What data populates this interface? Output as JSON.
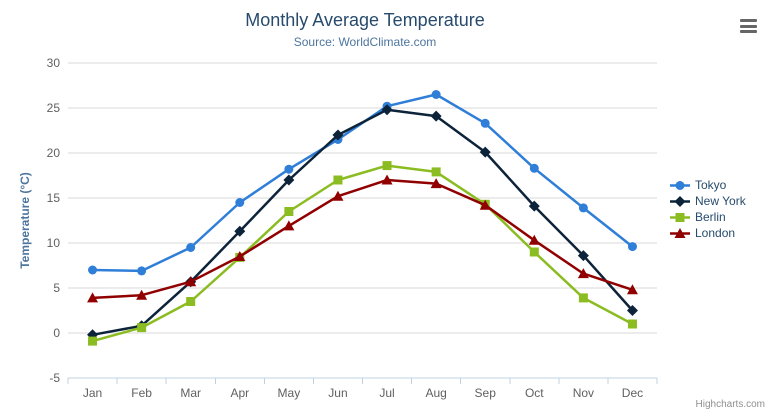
{
  "header": {
    "title": "Monthly Average Temperature",
    "subtitle": "Source: WorldClimate.com"
  },
  "credits": {
    "label": "Highcharts.com"
  },
  "context_menu": {
    "icon": "hamburger-icon"
  },
  "colors": {
    "title": "#274b6d",
    "subtitle": "#4d759e",
    "axis_title": "#4d759e",
    "axis_labels": "#606060",
    "gridline": "#d8d8d8",
    "axis_line": "#c0d0e0",
    "legend_text": "#274b6d",
    "credits": "#909090",
    "menu_icon": "#666666",
    "background": "#ffffff"
  },
  "chart_data": {
    "type": "line",
    "title": "Monthly Average Temperature",
    "subtitle": "Source: WorldClimate.com",
    "xlabel": "",
    "ylabel": "Temperature (°C)",
    "categories": [
      "Jan",
      "Feb",
      "Mar",
      "Apr",
      "May",
      "Jun",
      "Jul",
      "Aug",
      "Sep",
      "Oct",
      "Nov",
      "Dec"
    ],
    "ylim": [
      -5,
      30
    ],
    "ytick_interval": 5,
    "ytick_labels": [
      "-5",
      "0",
      "5",
      "10",
      "15",
      "20",
      "25",
      "30"
    ],
    "grid": true,
    "legend_position": "right",
    "series": [
      {
        "name": "Tokyo",
        "color": "#2f7ed8",
        "marker": "circle",
        "values": [
          7.0,
          6.9,
          9.5,
          14.5,
          18.2,
          21.5,
          25.2,
          26.5,
          23.3,
          18.3,
          13.9,
          9.6
        ]
      },
      {
        "name": "New York",
        "color": "#0d233a",
        "marker": "diamond",
        "values": [
          -0.2,
          0.8,
          5.7,
          11.3,
          17.0,
          22.0,
          24.8,
          24.1,
          20.1,
          14.1,
          8.6,
          2.5
        ]
      },
      {
        "name": "Berlin",
        "color": "#8bbc21",
        "marker": "square",
        "values": [
          -0.9,
          0.6,
          3.5,
          8.4,
          13.5,
          17.0,
          18.6,
          17.9,
          14.3,
          9.0,
          3.9,
          1.0
        ]
      },
      {
        "name": "London",
        "color": "#910000",
        "marker": "triangle",
        "values": [
          3.9,
          4.2,
          5.7,
          8.5,
          11.9,
          15.2,
          17.0,
          16.6,
          14.2,
          10.3,
          6.6,
          4.8
        ]
      }
    ]
  }
}
